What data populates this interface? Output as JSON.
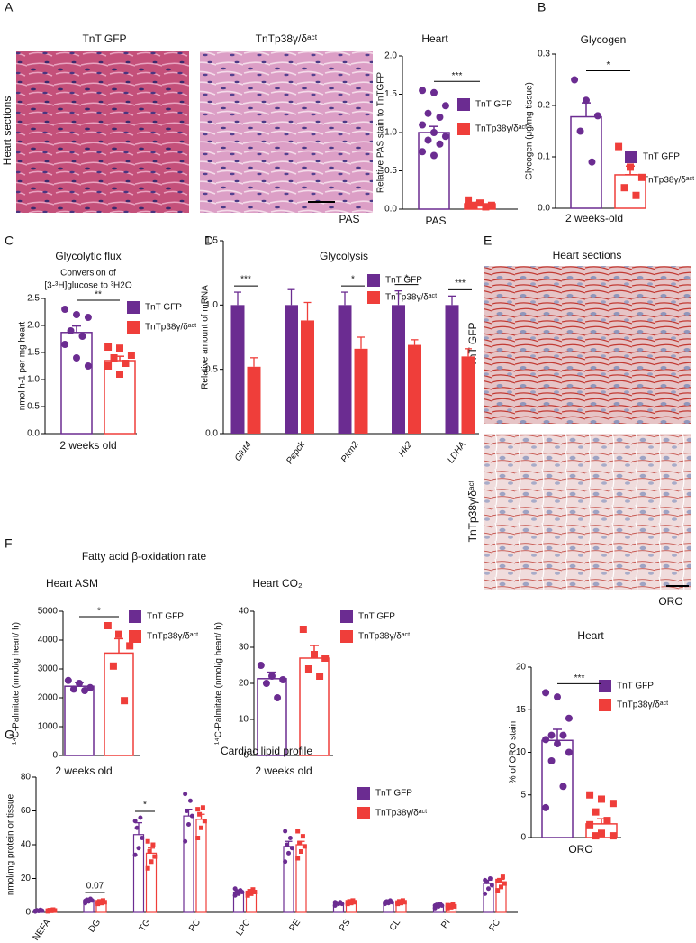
{
  "panels": {
    "a": "A",
    "b": "B",
    "c": "C",
    "d": "D",
    "e": "E",
    "f": "F",
    "g": "G"
  },
  "images": {
    "a_left": "TnT GFP",
    "a_right": "TnTp38γ/δᵃᶜᵗ",
    "a_side": "Heart sections",
    "a_stain": "PAS",
    "e_title": "Heart sections",
    "e_top": "TnT GFP",
    "e_bottom": "TnTp38γ/δᵃᶜᵗ",
    "e_stain": "ORO"
  },
  "headings": {
    "f": "Fatty acid β-oxidation rate"
  },
  "chart_data": [
    {
      "type": "dotbar",
      "title": "Heart",
      "ylabel": "Relative PAS stain to TnTGFP",
      "xlabel": "PAS",
      "ylim": [
        0,
        2
      ],
      "yticks": [
        {
          "value": 0,
          "label": "0.0"
        },
        0.5,
        {
          "value": 1,
          "label": "1.0"
        },
        1.5,
        {
          "value": 2,
          "label": "2.0"
        }
      ],
      "significance": "***",
      "series": [
        {
          "name": "TnT GFP",
          "color": "#6b2c91",
          "marker": "circle",
          "mean": 1.0,
          "sem": 0.08,
          "points": [
            1.55,
            1.52,
            1.35,
            1.25,
            1.2,
            1.1,
            1.0,
            0.95,
            0.9,
            0.85,
            0.75,
            0.7
          ]
        },
        {
          "name": "TnTp38γ/δᵃᶜᵗ",
          "color": "#ef3e3a",
          "marker": "square",
          "mean": 0.07,
          "sem": 0.02,
          "points": [
            0.12,
            0.08,
            0.05,
            0.05,
            0.03,
            0.05
          ]
        }
      ]
    },
    {
      "type": "dotbar",
      "title": "Glycogen",
      "ylabel": "Glycogen (μg/mg tissue)",
      "xlabel": "2 weeks-old",
      "ylim": [
        0,
        0.3
      ],
      "yticks": [
        {
          "value": 0,
          "label": "0.0"
        },
        0.1,
        0.2,
        0.3
      ],
      "significance": "*",
      "series": [
        {
          "name": "TnT GFP",
          "color": "#6b2c91",
          "marker": "circle",
          "mean": 0.178,
          "sem": 0.027,
          "points": [
            0.25,
            0.21,
            0.18,
            0.15,
            0.09
          ]
        },
        {
          "name": "TnTp38γ/δᵃᶜᵗ",
          "color": "#ef3e3a",
          "marker": "square",
          "mean": 0.065,
          "sem": 0.017,
          "points": [
            0.12,
            0.08,
            0.06,
            0.04,
            0.025
          ]
        }
      ]
    },
    {
      "type": "dotbar",
      "title": "Glycolytic flux",
      "subtitle": [
        "Conversion of",
        "[3-³H]glucose to ³H2O"
      ],
      "ylabel": "nmol h-1 per mg heart",
      "xlabel": "2 weeks old",
      "ylim": [
        0,
        2.5
      ],
      "yticks": [
        {
          "value": 0,
          "label": "0.0"
        },
        0.5,
        {
          "value": 1,
          "label": "1.0"
        },
        1.5,
        {
          "value": 2,
          "label": "2.0"
        },
        2.5
      ],
      "significance": "**",
      "series": [
        {
          "name": "TnT GFP",
          "color": "#6b2c91",
          "marker": "circle",
          "mean": 1.87,
          "sem": 0.12,
          "points": [
            2.3,
            2.2,
            2.15,
            1.9,
            1.8,
            1.65,
            1.4,
            1.25
          ]
        },
        {
          "name": "TnTp38γ/δᵃᶜᵗ",
          "color": "#ef3e3a",
          "marker": "square",
          "mean": 1.35,
          "sem": 0.08,
          "points": [
            1.6,
            1.58,
            1.45,
            1.4,
            1.3,
            1.25,
            1.1
          ]
        }
      ]
    },
    {
      "type": "bar",
      "title": "Glycolysis",
      "ylabel": "Relative amount of mRNA",
      "bar_style": "filled",
      "italic_categories": true,
      "categories": [
        "Glut4",
        "Pepck",
        "Pkm2",
        "Hk2",
        "LDHA"
      ],
      "ylim": [
        0,
        1.5
      ],
      "yticks": [
        {
          "value": 0,
          "label": "0.0"
        },
        0.5,
        {
          "value": 1,
          "label": "1.0"
        },
        1.5
      ],
      "annotations": [
        "***",
        null,
        "*",
        "*",
        "***"
      ],
      "series": [
        {
          "name": "TnT GFP",
          "color": "#6b2c91",
          "values": [
            1,
            1,
            1,
            1,
            1
          ],
          "errors": [
            0.1,
            0.12,
            0.1,
            0.11,
            0.07
          ]
        },
        {
          "name": "TnTp38γ/δᵃᶜᵗ",
          "color": "#ef3e3a",
          "values": [
            0.52,
            0.88,
            0.66,
            0.69,
            0.6
          ],
          "errors": [
            0.07,
            0.14,
            0.09,
            0.04,
            0.06
          ]
        }
      ]
    },
    {
      "type": "dotbar",
      "title": "Heart ASM",
      "ylabel": "¹⁴C-Palmitate (nmol/g heart/ h)",
      "xlabel": "2 weeks old",
      "ylim": [
        0,
        5000
      ],
      "yticks": [
        0,
        1000,
        2000,
        3000,
        4000,
        5000
      ],
      "significance": "*",
      "series": [
        {
          "name": "TnT GFP",
          "color": "#6b2c91",
          "marker": "circle",
          "mean": 2400,
          "sem": 130,
          "points": [
            2600,
            2500,
            2350,
            2300,
            2250
          ]
        },
        {
          "name": "TnTp38γ/δᵃᶜᵗ",
          "color": "#ef3e3a",
          "marker": "square",
          "mean": 3550,
          "sem": 500,
          "points": [
            4500,
            4200,
            3800,
            3100,
            1900
          ]
        }
      ]
    },
    {
      "type": "dotbar",
      "title": "Heart CO₂",
      "ylabel": "¹⁴C-Palmitate (nmol/g heart/ h)",
      "xlabel": "2 weeks old",
      "ylim": [
        0,
        40
      ],
      "yticks": [
        0,
        10,
        20,
        30,
        40
      ],
      "series": [
        {
          "name": "TnT GFP",
          "color": "#6b2c91",
          "marker": "circle",
          "mean": 21.3,
          "sem": 1.8,
          "points": [
            25,
            22,
            21,
            20,
            16
          ]
        },
        {
          "name": "TnTp38γ/δᵃᶜᵗ",
          "color": "#ef3e3a",
          "marker": "square",
          "mean": 27,
          "sem": 3.5,
          "points": [
            35,
            28,
            27,
            24,
            22
          ]
        }
      ]
    },
    {
      "type": "dotbar",
      "title": "Heart",
      "ylabel": "% of ORO stain",
      "xlabel": "ORO",
      "ylim": [
        0,
        20
      ],
      "yticks": [
        0,
        5,
        10,
        15,
        20
      ],
      "significance": "***",
      "series": [
        {
          "name": "TnT GFP",
          "color": "#6b2c91",
          "marker": "circle",
          "mean": 11.4,
          "sem": 1.3,
          "points": [
            17,
            16.5,
            14,
            12,
            12,
            11.5,
            11,
            10,
            9,
            6,
            3.5
          ]
        },
        {
          "name": "TnTp38γ/δᵃᶜᵗ",
          "color": "#ef3e3a",
          "marker": "square",
          "mean": 1.6,
          "sem": 0.6,
          "points": [
            5,
            4.5,
            4,
            3,
            2,
            1.5,
            0.5,
            0.2,
            0.2
          ]
        }
      ]
    },
    {
      "type": "bar",
      "title": "Cardiac lipid profile",
      "ylabel": "nmol/mg protein or tissue",
      "bar_style": "outline",
      "categories": [
        "NEFA",
        "DG",
        "TG",
        "PC",
        "LPC",
        "PE",
        "PS",
        "CL",
        "PI",
        "FC"
      ],
      "ylim": [
        0,
        80
      ],
      "yticks": [
        0,
        20,
        40,
        60,
        80
      ],
      "annotations": [
        null,
        "0.07",
        "*",
        null,
        null,
        null,
        null,
        null,
        null,
        null
      ],
      "series": [
        {
          "name": "TnT GFP",
          "color": "#6b2c91",
          "marker": "circle",
          "values": [
            1,
            7,
            46,
            57,
            12,
            39,
            5,
            6,
            4,
            17
          ],
          "errors": [
            0.2,
            0.4,
            7,
            4,
            0.6,
            3,
            0.4,
            0.4,
            0.5,
            2
          ],
          "points": [
            [
              0.5,
              0.8,
              1.0,
              1.2,
              1.5,
              0.9
            ],
            [
              5.5,
              6.5,
              7,
              7.5,
              8,
              6.8
            ],
            [
              34,
              38,
              44,
              50,
              56,
              54
            ],
            [
              42,
              52,
              57,
              60,
              66,
              70
            ],
            [
              10,
              11,
              12,
              12.5,
              13,
              14
            ],
            [
              30,
              35,
              38,
              40,
              44,
              48
            ],
            [
              4,
              5,
              5,
              5.5,
              6,
              6
            ],
            [
              5,
              5.5,
              6,
              6.5,
              7,
              6
            ],
            [
              2.5,
              3.5,
              4,
              4.5,
              5,
              4
            ],
            [
              11,
              14,
              16,
              18,
              20,
              19
            ]
          ]
        },
        {
          "name": "TnTp38γ/δᵃᶜᵗ",
          "color": "#ef3e3a",
          "marker": "square",
          "values": [
            1,
            6,
            35,
            55,
            12,
            40,
            6,
            6,
            4,
            18
          ],
          "errors": [
            0.2,
            0.3,
            3,
            3,
            0.5,
            2,
            0.4,
            0.3,
            0.4,
            1.5
          ],
          "points": [
            [
              0.6,
              0.9,
              1.1,
              1.3,
              1.6,
              1.0
            ],
            [
              5,
              5.5,
              6,
              6.5,
              7,
              6
            ],
            [
              26,
              30,
              33,
              36,
              40,
              42
            ],
            [
              44,
              50,
              54,
              58,
              62,
              61
            ],
            [
              10,
              11,
              12,
              12.5,
              13.5,
              11.5
            ],
            [
              32,
              36,
              39,
              41,
              45,
              48
            ],
            [
              5,
              5.5,
              6,
              6.5,
              7,
              6
            ],
            [
              5,
              5.5,
              6,
              6.5,
              7,
              5.8
            ],
            [
              2.5,
              3,
              3.5,
              4,
              5,
              4.2
            ],
            [
              13,
              15,
              17,
              19,
              21,
              18.5
            ]
          ]
        }
      ]
    }
  ]
}
